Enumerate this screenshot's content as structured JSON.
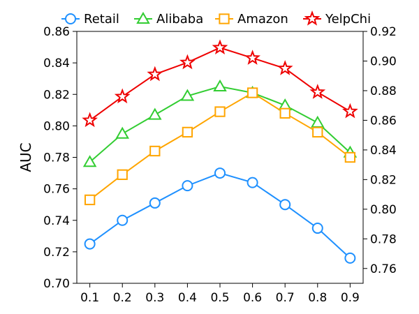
{
  "chart_data": {
    "type": "line",
    "title": "",
    "xlabel": "",
    "ylabel": "AUC",
    "x": [
      0.1,
      0.2,
      0.3,
      0.4,
      0.5,
      0.6,
      0.7,
      0.8,
      0.9
    ],
    "x_tick_labels": [
      "0.1",
      "0.2",
      "0.3",
      "0.4",
      "0.5",
      "0.6",
      "0.7",
      "0.8",
      "0.9"
    ],
    "y_left_ticks": [
      "0.70",
      "0.72",
      "0.74",
      "0.76",
      "0.78",
      "0.80",
      "0.82",
      "0.84",
      "0.86"
    ],
    "y_right_ticks": [
      "0.76",
      "0.78",
      "0.80",
      "0.82",
      "0.84",
      "0.86",
      "0.88",
      "0.90",
      "0.92"
    ],
    "ylim_left": [
      0.7,
      0.86
    ],
    "ylim_right": [
      0.75,
      0.92
    ],
    "legend_position": "top",
    "grid": false,
    "series": [
      {
        "name": "Retail",
        "axis": "left",
        "color": "#1e90ff",
        "marker": "circle",
        "values": [
          0.725,
          0.74,
          0.751,
          0.762,
          0.77,
          0.764,
          0.75,
          0.735,
          0.716
        ]
      },
      {
        "name": "Alibaba",
        "axis": "left",
        "color": "#32cd32",
        "marker": "triangle",
        "values": [
          0.777,
          0.795,
          0.807,
          0.819,
          0.825,
          0.821,
          0.813,
          0.802,
          0.783
        ]
      },
      {
        "name": "Amazon",
        "axis": "left",
        "color": "#ffa500",
        "marker": "square",
        "values": [
          0.753,
          0.769,
          0.784,
          0.796,
          0.809,
          0.821,
          0.808,
          0.796,
          0.78
        ]
      },
      {
        "name": "YelpChi",
        "axis": "right",
        "color": "#ee0000",
        "marker": "star",
        "values": [
          0.86,
          0.876,
          0.891,
          0.899,
          0.909,
          0.902,
          0.895,
          0.879,
          0.866
        ]
      }
    ]
  }
}
